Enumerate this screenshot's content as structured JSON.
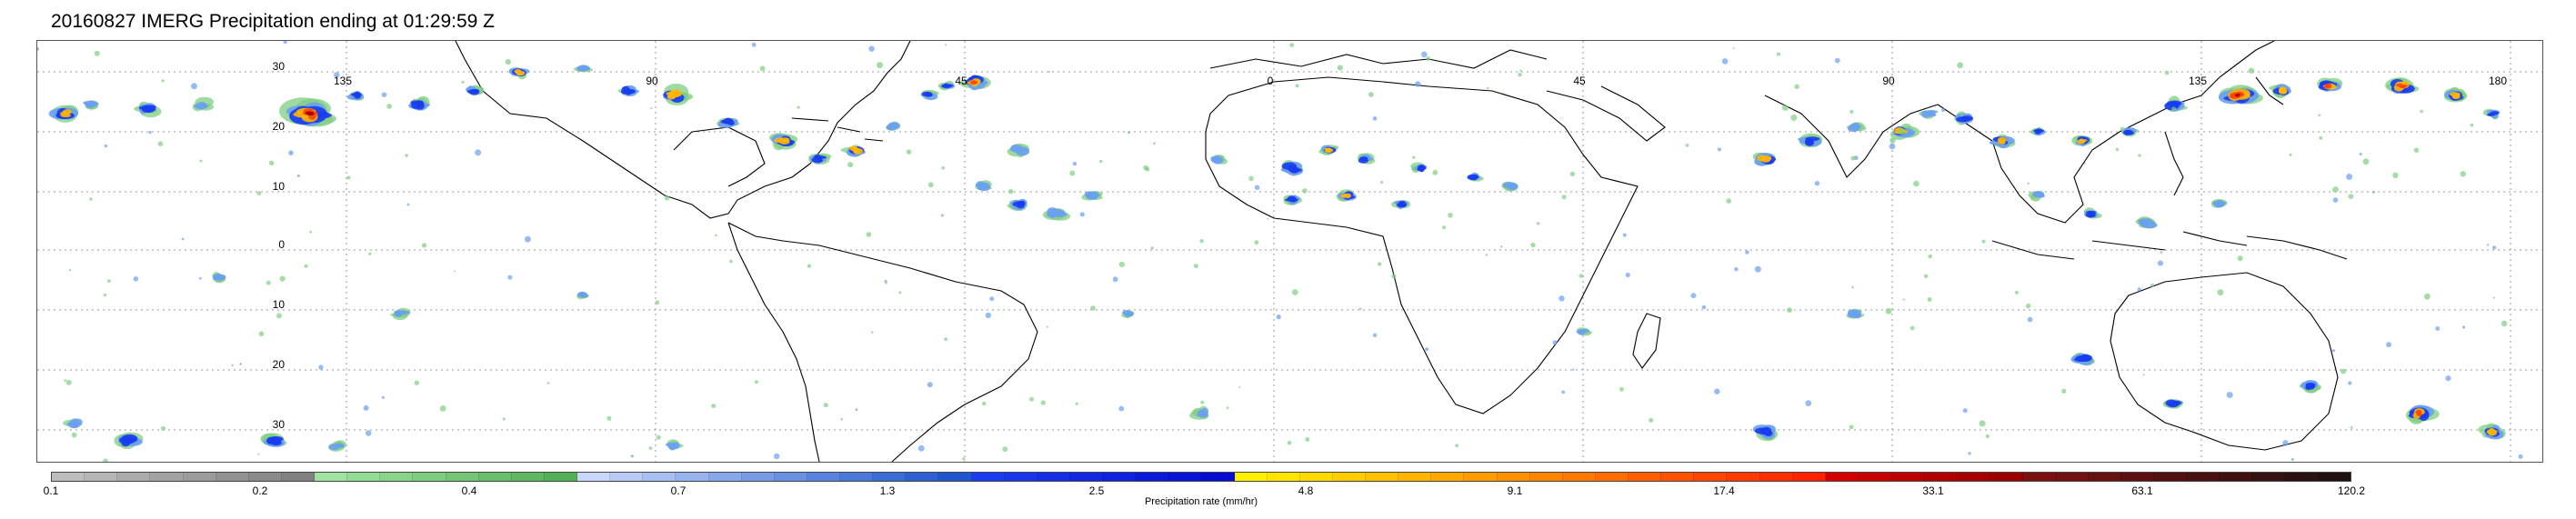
{
  "title": "20160827 IMERG Precipitation ending at 01:29:59 Z",
  "map": {
    "lon_labels": [
      "135",
      "90",
      "45",
      "0",
      "45",
      "90",
      "135",
      "180"
    ],
    "lat_labels": [
      "30",
      "20",
      "10",
      "0",
      "10",
      "20",
      "30"
    ],
    "gridlines": "dotted",
    "land_color": "#ffffff",
    "coastline_color": "#000000"
  },
  "colorbar": {
    "label": "Precipitation rate (mm/hr)",
    "tick_labels": [
      "0.1",
      "0.2",
      "0.4",
      "0.7",
      "1.3",
      "2.5",
      "4.8",
      "9.1",
      "17.4",
      "33.1",
      "63.1",
      "120.2"
    ],
    "colors": [
      "#bdbdbd",
      "#b5b5b5",
      "#acacac",
      "#a3a3a3",
      "#9b9b9b",
      "#929292",
      "#8a8a8a",
      "#818181",
      "#9fe3a0",
      "#93dc95",
      "#88d58a",
      "#7dcd7f",
      "#72c674",
      "#67bf69",
      "#5db85f",
      "#53b155",
      "#c9d7fb",
      "#b8cbf7",
      "#a8bff3",
      "#97b3ef",
      "#87a7eb",
      "#779be7",
      "#6890e3",
      "#5984df",
      "#4a78db",
      "#3b6dd7",
      "#2d61d3",
      "#1f56cf",
      "#1a3cf0",
      "#1735ec",
      "#142ee8",
      "#1127e4",
      "#0e20e0",
      "#0b19dc",
      "#0812d8",
      "#060bd4",
      "#fff000",
      "#ffe500",
      "#ffd900",
      "#ffcd00",
      "#ffc100",
      "#ffb500",
      "#ffa800",
      "#ff9c00",
      "#ff9000",
      "#ff8400",
      "#ff7800",
      "#ff6c00",
      "#ff5e00",
      "#ff5200",
      "#ff4600",
      "#ff3a00",
      "#ff2e00",
      "#ff2200",
      "#d40000",
      "#c90000",
      "#be0000",
      "#b30000",
      "#a80000",
      "#9d0000",
      "#7a1010",
      "#701010",
      "#661010",
      "#5c1010",
      "#521010",
      "#481010",
      "#3e1010",
      "#341010",
      "#2a1010",
      "#201010"
    ]
  },
  "precip_palette": {
    "light": "#7fcf80",
    "moderate": "#6aa0f0",
    "heavy": "#1a3cf0",
    "intense": "#ffb500",
    "extreme": "#ff4600",
    "core": "#a80000"
  }
}
